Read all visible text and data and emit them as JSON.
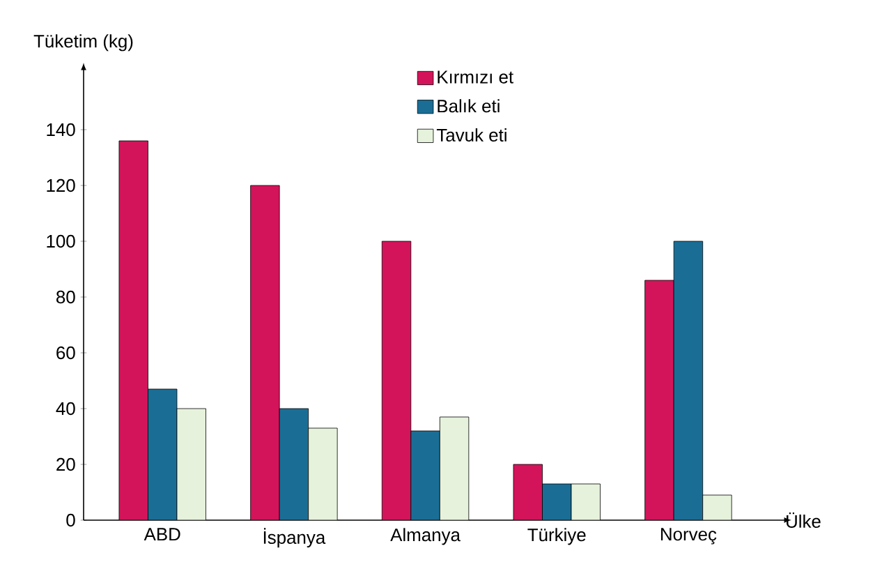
{
  "chart_data": {
    "type": "bar",
    "xlabel": "Ülke",
    "ylabel": "Tüketim (kg)",
    "categories": [
      "ABD",
      "İspanya",
      "Almanya",
      "Türkiye",
      "Norveç"
    ],
    "series": [
      {
        "name": "Kırmızı et",
        "color": "#d4145a",
        "values": [
          136,
          120,
          100,
          20,
          86
        ]
      },
      {
        "name": "Balık eti",
        "color": "#1a6e96",
        "values": [
          47,
          40,
          32,
          13,
          100
        ]
      },
      {
        "name": "Tavuk eti",
        "color": "#e6f2dc",
        "values": [
          40,
          33,
          37,
          13,
          9
        ]
      }
    ],
    "ylim": [
      0,
      160
    ],
    "yticks": [
      0,
      20,
      40,
      60,
      80,
      100,
      120,
      140
    ],
    "grid": false,
    "legend": "top"
  }
}
